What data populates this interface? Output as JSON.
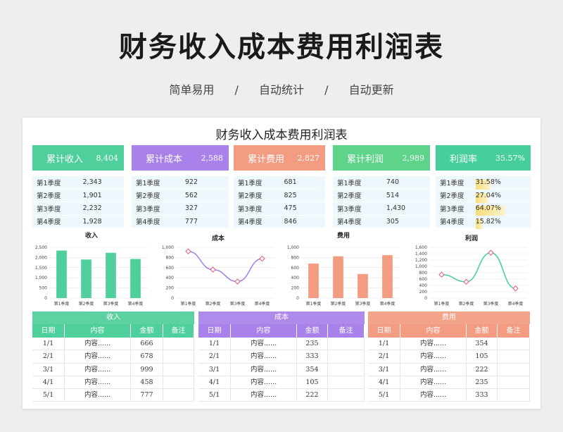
{
  "header": {
    "title": "财务收入成本费用利润表",
    "taglines": [
      "简单易用",
      "/",
      "自动统计",
      "/",
      "自动更新"
    ]
  },
  "sheet": {
    "title": "财务收入成本费用利润表"
  },
  "colors": {
    "income": "#4fcf9c",
    "cost": "#a882ea",
    "expense": "#f49c82",
    "profit": "#5ed38a",
    "rate": "#46cf9b"
  },
  "kpis": [
    {
      "label": "累计收入",
      "value": "8,404"
    },
    {
      "label": "累计成本",
      "value": "2,588"
    },
    {
      "label": "累计费用",
      "value": "2,827"
    },
    {
      "label": "累计利润",
      "value": "2,989"
    },
    {
      "label": "利润率",
      "value": "35.57%"
    }
  ],
  "quarters": {
    "income": [
      [
        "第1季度",
        "2,343"
      ],
      [
        "第2季度",
        "1,901"
      ],
      [
        "第3季度",
        "2,232"
      ],
      [
        "第4季度",
        "1,928"
      ]
    ],
    "cost": [
      [
        "第1季度",
        "922"
      ],
      [
        "第2季度",
        "562"
      ],
      [
        "第3季度",
        "327"
      ],
      [
        "第4季度",
        "777"
      ]
    ],
    "expense": [
      [
        "第1季度",
        "681"
      ],
      [
        "第2季度",
        "825"
      ],
      [
        "第3季度",
        "475"
      ],
      [
        "第4季度",
        "846"
      ]
    ],
    "profit": [
      [
        "第1季度",
        "740"
      ],
      [
        "第2季度",
        "514"
      ],
      [
        "第3季度",
        "1,430"
      ],
      [
        "第4季度",
        "305"
      ]
    ],
    "rate": [
      [
        "第1季度",
        "31.58%",
        0.3158
      ],
      [
        "第2季度",
        "27.04%",
        0.2704
      ],
      [
        "第3季度",
        "64.07%",
        0.6407
      ],
      [
        "第4季度",
        "15.82%",
        0.1582
      ]
    ]
  },
  "chart_data": [
    {
      "type": "bar",
      "title": "收入",
      "categories": [
        "第1季度",
        "第2季度",
        "第3季度",
        "第4季度"
      ],
      "values": [
        2343,
        1901,
        2232,
        1928
      ],
      "ylim": [
        0,
        2500
      ],
      "yticks": [
        "0",
        "500",
        "1,000",
        "1,500",
        "2,000",
        "2,500"
      ],
      "color": "#4fcf9c"
    },
    {
      "type": "line",
      "title": "成本",
      "categories": [
        "第1季度",
        "第2季度",
        "第3季度",
        "第4季度"
      ],
      "values": [
        922,
        562,
        327,
        777
      ],
      "ylim": [
        0,
        1000
      ],
      "yticks": [
        "0",
        "200",
        "400",
        "600",
        "800",
        "1,000"
      ],
      "color": "#a882ea"
    },
    {
      "type": "bar",
      "title": "费用",
      "categories": [
        "第1季度",
        "第2季度",
        "第3季度",
        "第4季度"
      ],
      "values": [
        681,
        825,
        475,
        846
      ],
      "ylim": [
        0,
        1000
      ],
      "yticks": [
        "0",
        "200",
        "400",
        "600",
        "800",
        "1,000"
      ],
      "color": "#f49c82"
    },
    {
      "type": "line",
      "title": "利润",
      "categories": [
        "第1季度",
        "第2季度",
        "第3季度",
        "第4季度"
      ],
      "values": [
        740,
        514,
        1430,
        305
      ],
      "ylim": [
        0,
        1600
      ],
      "yticks": [
        "0",
        "200",
        "400",
        "600",
        "800",
        "1,000",
        "1,200",
        "1,400",
        "1,600"
      ],
      "color": "#4fcf9c"
    }
  ],
  "tables": [
    {
      "title": "收入",
      "cols": [
        "日期",
        "内容",
        "金额",
        "备注"
      ],
      "rows": [
        [
          "1/1",
          "内容......",
          "666",
          ""
        ],
        [
          "2/1",
          "内容......",
          "678",
          ""
        ],
        [
          "3/1",
          "内容......",
          "999",
          ""
        ],
        [
          "4/1",
          "内容......",
          "458",
          ""
        ],
        [
          "5/1",
          "内容......",
          "777",
          ""
        ]
      ]
    },
    {
      "title": "成本",
      "cols": [
        "日期",
        "内容",
        "金额",
        "备注"
      ],
      "rows": [
        [
          "1/1",
          "内容......",
          "235",
          ""
        ],
        [
          "2/1",
          "内容......",
          "333",
          ""
        ],
        [
          "3/1",
          "内容......",
          "354",
          ""
        ],
        [
          "4/1",
          "内容......",
          "105",
          ""
        ],
        [
          "5/1",
          "内容......",
          "222",
          ""
        ]
      ]
    },
    {
      "title": "费用",
      "cols": [
        "日期",
        "内容",
        "金额",
        "备注"
      ],
      "rows": [
        [
          "1/1",
          "内容......",
          "354",
          ""
        ],
        [
          "2/1",
          "内容......",
          "105",
          ""
        ],
        [
          "3/1",
          "内容......",
          "222",
          ""
        ],
        [
          "4/1",
          "内容......",
          "235",
          ""
        ],
        [
          "5/1",
          "内容......",
          "333",
          ""
        ]
      ]
    }
  ]
}
